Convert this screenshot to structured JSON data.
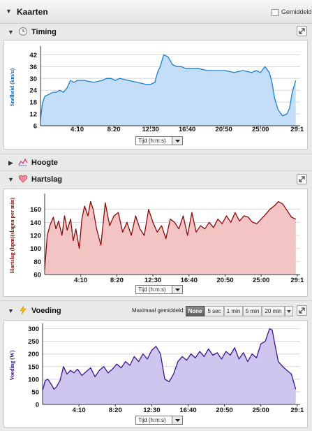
{
  "header": {
    "title": "Kaarten",
    "checkbox_label": "Gemiddeld"
  },
  "sections": {
    "timing": {
      "title": "Timing"
    },
    "hoogte": {
      "title": "Hoogte"
    },
    "hartslag": {
      "title": "Hartslag"
    },
    "voeding": {
      "title": "Voeding"
    }
  },
  "smoothing": {
    "label": "Maximaal gemiddeld:",
    "options": [
      "None",
      "5 sec",
      "1 min",
      "5 min",
      "20 min"
    ],
    "selected": "None"
  },
  "icons": {
    "collapse": "triangle-down-icon",
    "expand": "expand-icon",
    "timing": "clock-icon",
    "hoogte": "elevation-icon",
    "hartslag": "heart-icon",
    "voeding": "lightning-icon"
  },
  "colors": {
    "speed_line": "#1a7fd0",
    "speed_fill": "#c4defa",
    "hr_line": "#8b0a0a",
    "hr_fill": "#f2c4c4",
    "power_line": "#3a1590",
    "power_fill": "#cfc6f0"
  },
  "chart_data": [
    {
      "type": "area",
      "name": "speed",
      "ylabel": "Snelheid (km/u)",
      "x_ticks": [
        "4:10",
        "8:20",
        "12:30",
        "16:40",
        "20:50",
        "25:00",
        "29:1"
      ],
      "y_ticks": [
        6,
        12,
        18,
        24,
        30,
        36,
        42
      ],
      "ylim": [
        6,
        45
      ],
      "x_select": "Tijd (h:m:s)",
      "x": [
        0,
        0.2,
        0.5,
        1,
        1.4,
        1.8,
        2.2,
        2.6,
        3,
        3.4,
        3.8,
        4.2,
        5,
        6,
        7,
        7.5,
        8,
        8.5,
        9,
        10,
        11,
        12,
        12.5,
        13,
        13.3,
        13.6,
        14,
        14.5,
        15,
        15.5,
        16,
        16.5,
        17,
        18,
        19,
        20,
        21,
        22,
        23,
        24,
        24.5,
        25,
        25.5,
        26,
        26.3,
        26.6,
        27,
        27.5,
        28,
        28.3,
        28.6,
        29
      ],
      "values": [
        9,
        17,
        21,
        22,
        23,
        23,
        24,
        23,
        25,
        29,
        28,
        29,
        29,
        28,
        29,
        30,
        30,
        29,
        30,
        29,
        28,
        27,
        27,
        28,
        33,
        36,
        42,
        41,
        37,
        36,
        36,
        35,
        35,
        35,
        34,
        34,
        34,
        33,
        34,
        33,
        34,
        33,
        36,
        33,
        28,
        20,
        14,
        11,
        12,
        15,
        23,
        29
      ]
    },
    {
      "type": "area",
      "name": "heart_rate",
      "ylabel": "Hartslag (hpm)(slagen per min)",
      "x_ticks": [
        "4:10",
        "8:20",
        "12:30",
        "16:40",
        "20:50",
        "25:00",
        "29:1"
      ],
      "y_ticks": [
        60,
        80,
        100,
        120,
        140,
        160
      ],
      "ylim": [
        60,
        180
      ],
      "x_select": "Tijd (h:m:s)",
      "x": [
        0,
        0.3,
        0.6,
        1,
        1.3,
        1.6,
        2,
        2.3,
        2.6,
        3,
        3.3,
        3.6,
        4,
        4.3,
        4.6,
        5,
        5.3,
        5.6,
        6,
        6.5,
        7,
        7.5,
        8,
        8.5,
        9,
        9.5,
        10,
        10.5,
        11,
        11.5,
        12,
        12.5,
        13,
        13.5,
        14,
        14.5,
        15,
        15.5,
        16,
        16.5,
        17,
        17.5,
        18,
        18.5,
        19,
        19.5,
        20,
        20.5,
        21,
        21.5,
        22,
        22.5,
        23,
        23.5,
        24,
        24.5,
        25,
        25.5,
        26,
        26.5,
        27,
        27.5,
        28,
        28.5,
        29
      ],
      "values": [
        68,
        120,
        135,
        148,
        130,
        142,
        120,
        150,
        128,
        145,
        112,
        130,
        100,
        145,
        165,
        150,
        172,
        160,
        130,
        105,
        170,
        135,
        150,
        155,
        125,
        140,
        120,
        150,
        130,
        120,
        160,
        140,
        125,
        135,
        115,
        145,
        140,
        130,
        150,
        120,
        155,
        125,
        135,
        130,
        140,
        132,
        145,
        138,
        150,
        140,
        155,
        142,
        150,
        148,
        140,
        138,
        145,
        152,
        160,
        165,
        172,
        168,
        158,
        148,
        145
      ]
    },
    {
      "type": "area",
      "name": "power",
      "ylabel": "Voeding (W)",
      "x_ticks": [
        "4:10",
        "8:20",
        "12:30",
        "16:40",
        "20:50",
        "25:00",
        "29:1"
      ],
      "y_ticks": [
        0,
        50,
        100,
        150,
        200,
        250,
        300
      ],
      "ylim": [
        0,
        310
      ],
      "x_select": "Tijd (h:m:s)",
      "x": [
        0,
        0.3,
        0.6,
        1,
        1.3,
        1.6,
        2,
        2.4,
        2.8,
        3.2,
        3.6,
        4,
        4.5,
        5,
        5.5,
        6,
        6.5,
        7,
        7.5,
        8,
        8.5,
        9,
        9.5,
        10,
        10.5,
        11,
        11.5,
        12,
        12.5,
        13,
        13.5,
        14,
        14.5,
        15,
        15.5,
        16,
        16.5,
        17,
        17.5,
        18,
        18.5,
        19,
        19.5,
        20,
        20.5,
        21,
        21.5,
        22,
        22.5,
        23,
        23.5,
        24,
        24.5,
        25,
        25.5,
        26,
        26.3,
        26.6,
        27,
        27.5,
        28,
        28.5,
        29
      ],
      "values": [
        55,
        95,
        100,
        80,
        60,
        70,
        95,
        150,
        120,
        135,
        125,
        140,
        115,
        130,
        145,
        110,
        135,
        150,
        125,
        140,
        160,
        145,
        170,
        155,
        190,
        170,
        200,
        180,
        215,
        230,
        200,
        100,
        90,
        120,
        170,
        190,
        175,
        200,
        185,
        210,
        190,
        220,
        195,
        205,
        180,
        210,
        195,
        225,
        180,
        205,
        170,
        200,
        185,
        240,
        250,
        300,
        295,
        240,
        170,
        150,
        135,
        120,
        60
      ]
    }
  ]
}
